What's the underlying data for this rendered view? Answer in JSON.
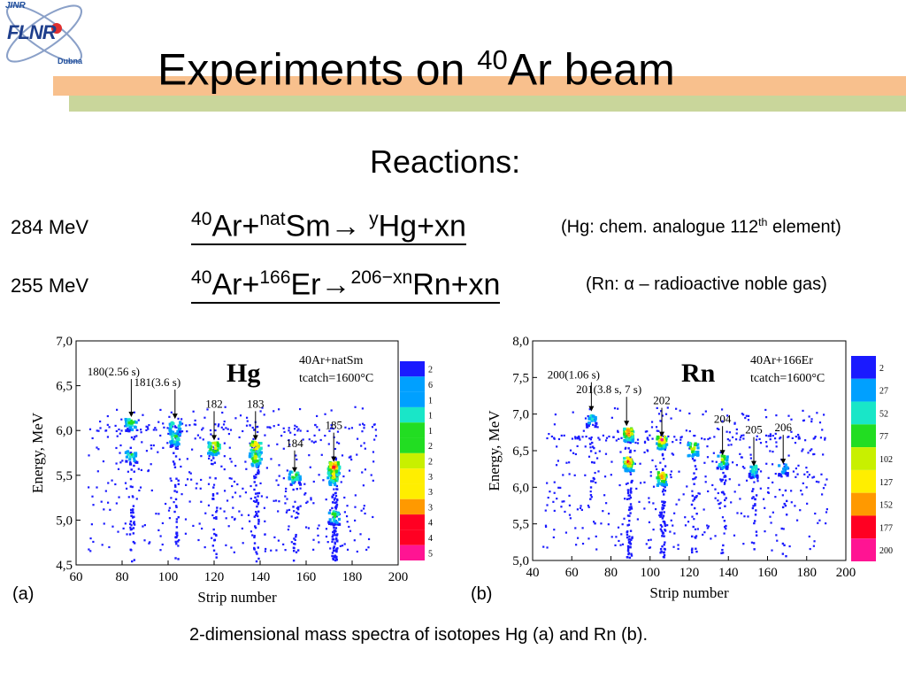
{
  "logo": {
    "top": "JINR",
    "main": "FLNR",
    "bottom": "Dubna"
  },
  "title": {
    "text": "Experiments on ",
    "sup": "40",
    "rest": "Ar beam"
  },
  "reactions_heading": "Reactions:",
  "reactions": [
    {
      "energy": "284 MeV",
      "eq": [
        {
          "sup": "40"
        },
        {
          "t": "Ar+"
        },
        {
          "sup": "nat"
        },
        {
          "t": "Sm→ "
        },
        {
          "sup": "y"
        },
        {
          "t": "Hg+xn"
        }
      ],
      "note_pre": "(Hg: chem. analogue 112",
      "note_sup": "th",
      "note_post": " element)"
    },
    {
      "energy": "255 MeV",
      "eq": [
        {
          "sup": "40"
        },
        {
          "t": "Ar+"
        },
        {
          "sup": "166"
        },
        {
          "t": "Er→"
        },
        {
          "sup": "206−xn"
        },
        {
          "t": "Rn+xn"
        }
      ],
      "note_pre": "(Rn: α – radioactive noble gas)",
      "note_sup": "",
      "note_post": ""
    }
  ],
  "caption": "2-dimensional mass spectra of isotopes Hg (a) and Rn (b).",
  "colors": {
    "low": "#1a1aff",
    "mid1": "#00a0ff",
    "mid2": "#19e6c8",
    "mid3": "#22dd22",
    "mid4": "#c8f000",
    "mid5": "#ffee00",
    "mid6": "#ff9900",
    "high": "#ff0022",
    "top": "#ff1493"
  },
  "chart_data": [
    {
      "type": "heatmap",
      "panel_label": "(a)",
      "element": "Hg",
      "reaction_lines": [
        "40Ar+natSm",
        "tcatch=1600°C"
      ],
      "xlabel": "Strip number",
      "ylabel": "Energy, MeV",
      "xlim": [
        60,
        200
      ],
      "ylim": [
        4.5,
        7.0
      ],
      "xticks": [
        "60",
        "80",
        "100",
        "120",
        "140",
        "160",
        "180",
        "200"
      ],
      "yticks": [
        "4,5",
        "5,0",
        "5,5",
        "6,0",
        "6,5",
        "7,0"
      ],
      "colorbar_labels": [
        "2",
        "6",
        "1",
        "1",
        "1",
        "2",
        "2",
        "3",
        "3",
        "3",
        "4",
        "4",
        "5"
      ],
      "annotations": [
        {
          "mass": "180",
          "detail": "(2.56 s)",
          "x": 84,
          "y": 6.12
        },
        {
          "mass": "181",
          "detail": "(3.6 s)",
          "x": 103,
          "y": 6.1
        },
        {
          "mass": "182",
          "detail": "",
          "x": 120,
          "y": 5.86
        },
        {
          "mass": "183",
          "detail": "",
          "x": 138,
          "y": 5.86
        },
        {
          "mass": "184",
          "detail": "",
          "x": 155,
          "y": 5.5
        },
        {
          "mass": "185",
          "detail": "",
          "x": 172,
          "y": 5.62
        }
      ],
      "clusters": [
        {
          "x": 84,
          "y": 6.1,
          "intensity": 0.45
        },
        {
          "x": 84,
          "y": 5.73,
          "intensity": 0.35
        },
        {
          "x": 103,
          "y": 6.05,
          "intensity": 0.45
        },
        {
          "x": 103,
          "y": 5.92,
          "intensity": 0.4
        },
        {
          "x": 120,
          "y": 5.82,
          "intensity": 0.75
        },
        {
          "x": 138,
          "y": 5.83,
          "intensity": 0.85
        },
        {
          "x": 138,
          "y": 5.7,
          "intensity": 0.6
        },
        {
          "x": 155,
          "y": 5.5,
          "intensity": 0.5
        },
        {
          "x": 172,
          "y": 5.6,
          "intensity": 1.0
        },
        {
          "x": 172,
          "y": 5.5,
          "intensity": 0.7
        },
        {
          "x": 172,
          "y": 5.05,
          "intensity": 0.45
        }
      ]
    },
    {
      "type": "heatmap",
      "panel_label": "(b)",
      "element": "Rn",
      "reaction_lines": [
        "40Ar+166Er",
        "tcatch=1600°C"
      ],
      "xlabel": "Strip number",
      "ylabel": "Energy, MeV",
      "xlim": [
        40,
        200
      ],
      "ylim": [
        5.0,
        8.0
      ],
      "xticks": [
        "40",
        "60",
        "80",
        "100",
        "120",
        "140",
        "160",
        "180",
        "200"
      ],
      "yticks": [
        "5,0",
        "5,5",
        "6,0",
        "6,5",
        "7,0",
        "7,5",
        "8,0"
      ],
      "colorbar_labels": [
        "2",
        "27",
        "52",
        "77",
        "102",
        "127",
        "152",
        "177",
        "200"
      ],
      "annotations": [
        {
          "mass": "200",
          "detail": "(1.06 s)",
          "x": 70,
          "y": 7.0
        },
        {
          "mass": "201",
          "detail": "(3.8 s, 7 s)",
          "x": 88,
          "y": 6.8
        },
        {
          "mass": "202",
          "detail": "",
          "x": 106,
          "y": 6.65
        },
        {
          "mass": "204",
          "detail": "",
          "x": 137,
          "y": 6.4
        },
        {
          "mass": "205",
          "detail": "",
          "x": 153,
          "y": 6.25
        },
        {
          "mass": "206",
          "detail": "",
          "x": 168,
          "y": 6.28
        }
      ],
      "clusters": [
        {
          "x": 89,
          "y": 6.75,
          "intensity": 1.0
        },
        {
          "x": 89,
          "y": 6.35,
          "intensity": 0.9
        },
        {
          "x": 106,
          "y": 6.65,
          "intensity": 1.0
        },
        {
          "x": 106,
          "y": 6.15,
          "intensity": 0.9
        },
        {
          "x": 122,
          "y": 6.55,
          "intensity": 0.65
        },
        {
          "x": 137,
          "y": 6.38,
          "intensity": 0.55
        },
        {
          "x": 153,
          "y": 6.25,
          "intensity": 0.35
        },
        {
          "x": 168,
          "y": 6.28,
          "intensity": 0.2
        },
        {
          "x": 70,
          "y": 6.95,
          "intensity": 0.25
        }
      ]
    }
  ]
}
